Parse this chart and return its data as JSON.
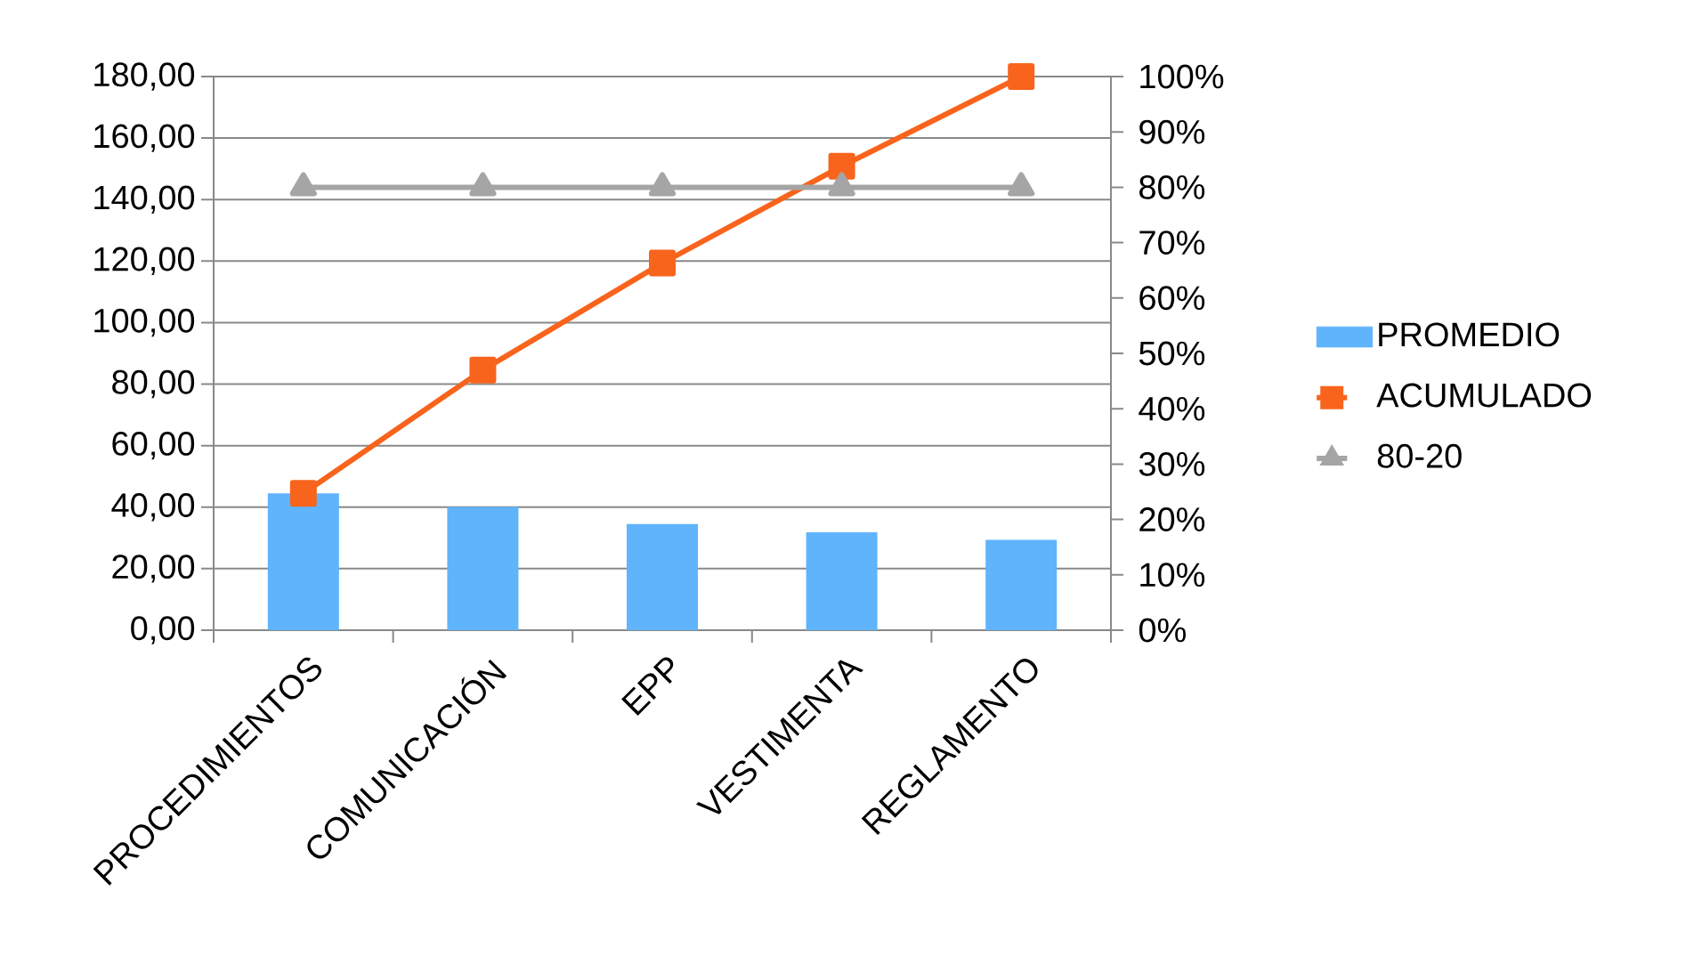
{
  "chart_data": {
    "type": "bar",
    "categories": [
      "PROCEDIMIENTOS",
      "COMUNICACIÓN",
      "EPP",
      "VESTIMENTA",
      "REGLAMENTO"
    ],
    "series": [
      {
        "name": "PROMEDIO",
        "color": "#5fb4fc",
        "values": [
          44.5,
          40.1,
          34.5,
          31.8,
          29.4
        ]
      },
      {
        "name": "ACUMULADO",
        "type": "line",
        "axis": "y2",
        "color": "#f8641c",
        "marker": "square",
        "values": [
          24.7,
          47.0,
          66.3,
          83.8,
          100
        ]
      },
      {
        "name": "80-20",
        "type": "line",
        "axis": "y2",
        "color": "#a5a5a5",
        "marker": "triangle",
        "values": [
          80,
          80,
          80,
          80,
          80
        ]
      }
    ],
    "ylim": [
      0,
      180
    ],
    "yticks": [
      {
        "value": 0,
        "label": "0,00"
      },
      {
        "value": 20,
        "label": "20,00"
      },
      {
        "value": 40,
        "label": "40,00"
      },
      {
        "value": 60,
        "label": "60,00"
      },
      {
        "value": 80,
        "label": "80,00"
      },
      {
        "value": 100,
        "label": "100,00"
      },
      {
        "value": 120,
        "label": "120,00"
      },
      {
        "value": 140,
        "label": "140,00"
      },
      {
        "value": 160,
        "label": "160,00"
      },
      {
        "value": 180,
        "label": "180,00"
      }
    ],
    "y2lim": [
      0,
      100
    ],
    "y2ticks": [
      {
        "value": 0,
        "label": "0%"
      },
      {
        "value": 10,
        "label": "10%"
      },
      {
        "value": 20,
        "label": "20%"
      },
      {
        "value": 30,
        "label": "30%"
      },
      {
        "value": 40,
        "label": "40%"
      },
      {
        "value": 50,
        "label": "50%"
      },
      {
        "value": 60,
        "label": "60%"
      },
      {
        "value": 70,
        "label": "70%"
      },
      {
        "value": 80,
        "label": "80%"
      },
      {
        "value": 90,
        "label": "90%"
      },
      {
        "value": 100,
        "label": "100%"
      }
    ],
    "grid": "y",
    "legend": "right"
  }
}
